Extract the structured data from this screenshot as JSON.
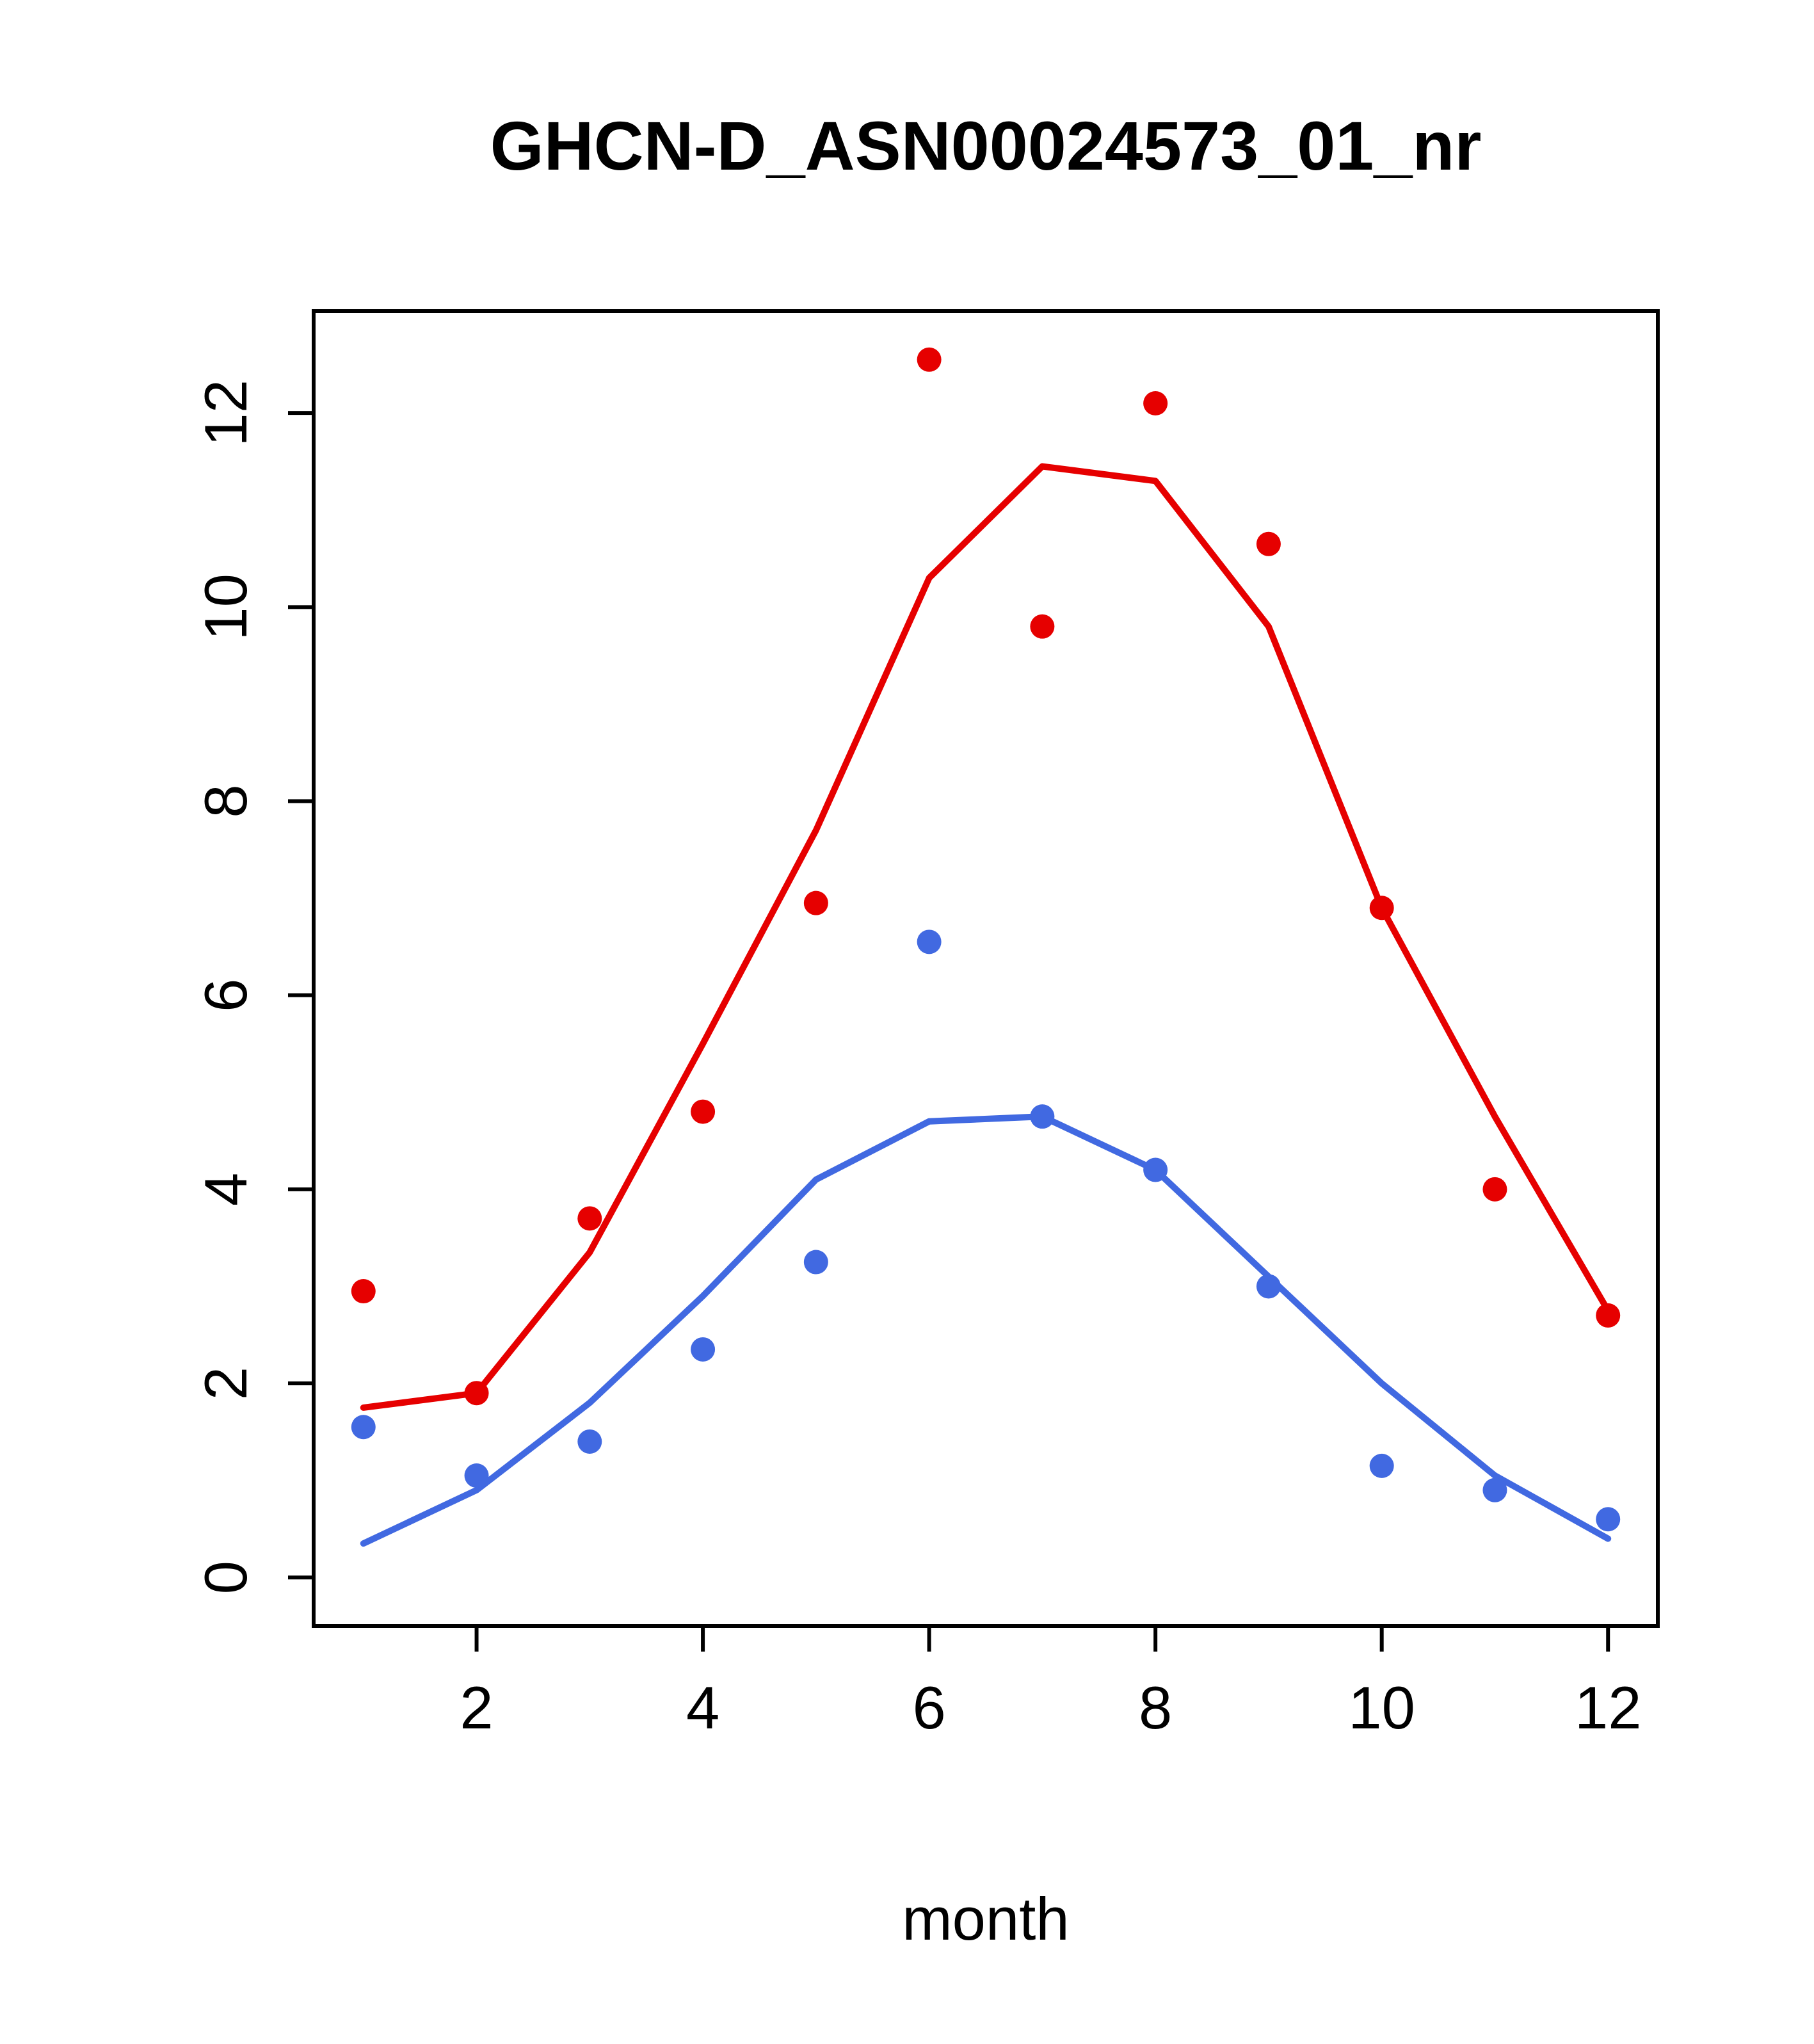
{
  "chart_data": {
    "type": "line",
    "title": "GHCN-D_ASN00024573_01_nr",
    "xlabel": "month",
    "ylabel": "",
    "x": [
      1,
      2,
      3,
      4,
      5,
      6,
      7,
      8,
      9,
      10,
      11,
      12
    ],
    "xticks": [
      2,
      4,
      6,
      8,
      10,
      12
    ],
    "yticks": [
      0,
      2,
      4,
      6,
      8,
      10,
      12
    ],
    "xlim": [
      0.56,
      12.44
    ],
    "ylim": [
      -0.5,
      13.05
    ],
    "grid": false,
    "legend": null,
    "colors": {
      "series1": "#e60000",
      "series2": "#4169e1",
      "axis": "#000000",
      "background": "#ffffff"
    },
    "series": [
      {
        "name": "red-monthly-points",
        "style": "points",
        "color": "#e60000",
        "values": [
          2.95,
          1.9,
          3.7,
          4.8,
          6.95,
          12.55,
          9.8,
          12.1,
          10.65,
          6.9,
          4.0,
          2.7
        ]
      },
      {
        "name": "red-fitted-line",
        "style": "line",
        "color": "#e60000",
        "values": [
          1.75,
          1.9,
          3.35,
          5.5,
          7.7,
          10.3,
          11.45,
          11.3,
          9.8,
          6.9,
          4.75,
          2.75
        ]
      },
      {
        "name": "blue-monthly-points",
        "style": "points",
        "color": "#4169e1",
        "values": [
          1.55,
          1.05,
          1.4,
          2.35,
          3.25,
          6.55,
          4.75,
          4.2,
          3.0,
          1.15,
          0.9,
          0.6
        ]
      },
      {
        "name": "blue-fitted-line",
        "style": "line",
        "color": "#4169e1",
        "values": [
          0.35,
          0.9,
          1.8,
          2.9,
          4.1,
          4.7,
          4.75,
          4.2,
          3.1,
          2.0,
          1.05,
          0.4
        ]
      }
    ]
  }
}
